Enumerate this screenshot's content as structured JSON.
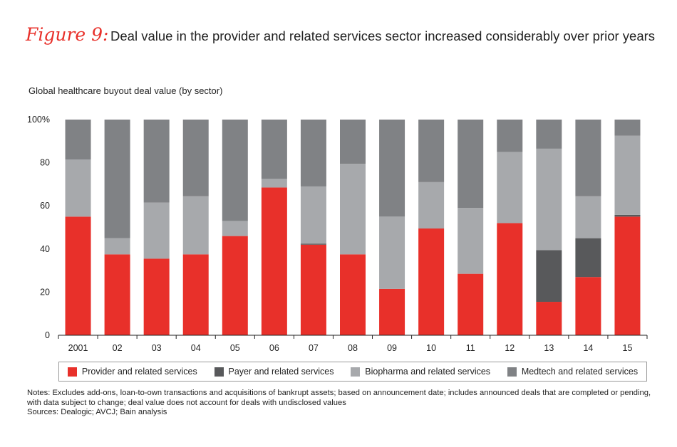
{
  "figure": {
    "label": "Figure 9:",
    "title": "Deal value in the provider and related services sector increased considerably over prior years"
  },
  "chart_data": {
    "type": "bar",
    "stacked": true,
    "title": "Global healthcare buyout deal value (by sector)",
    "xlabel": "",
    "ylabel": "",
    "ylim": [
      0,
      100
    ],
    "y_ticks": [
      "0",
      "20",
      "40",
      "60",
      "80",
      "100%"
    ],
    "categories": [
      "2001",
      "02",
      "03",
      "04",
      "05",
      "06",
      "07",
      "08",
      "09",
      "10",
      "11",
      "12",
      "13",
      "14",
      "15"
    ],
    "series": [
      {
        "name": "Provider and related services",
        "color": "#e8302a",
        "values": [
          55,
          37.5,
          35.5,
          37.5,
          46,
          68.5,
          42,
          37.5,
          21.5,
          49.5,
          28.5,
          52,
          15.5,
          27,
          55
        ]
      },
      {
        "name": "Payer and related services",
        "color": "#58595b",
        "values": [
          0,
          0,
          0,
          0,
          0,
          0,
          0.5,
          0,
          0,
          0,
          0,
          0,
          24,
          18,
          0.8
        ]
      },
      {
        "name": "Biopharma and related services",
        "color": "#a7a9ac",
        "values": [
          26.5,
          7.5,
          26,
          27,
          7,
          4,
          26.5,
          42,
          33.5,
          21.5,
          30.5,
          33,
          47,
          19.5,
          36.7
        ]
      },
      {
        "name": "Medtech and related services",
        "color": "#808285",
        "values": [
          18.5,
          55,
          38.5,
          35.5,
          47,
          27.5,
          31,
          20.5,
          45,
          29,
          41,
          15,
          13.5,
          35.5,
          7.5
        ]
      }
    ]
  },
  "notes": {
    "line1": "Notes: Excludes add-ons, loan-to-own transactions and acquisitions of bankrupt assets; based on announcement date; includes announced deals that are completed or pending, with data subject to change; deal value does not account for deals with undisclosed values",
    "sources": "Sources: Dealogic; AVCJ; Bain analysis"
  }
}
